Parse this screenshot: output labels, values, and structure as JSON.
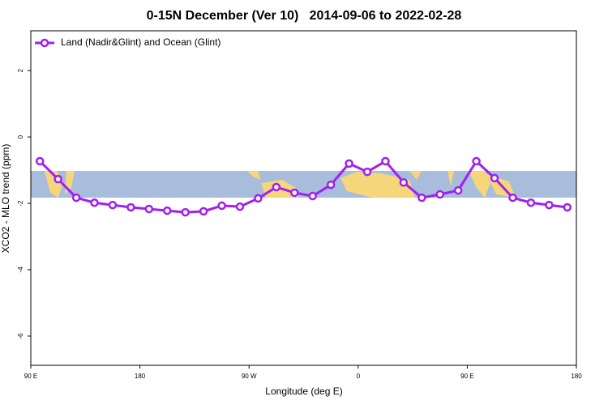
{
  "chart_data": {
    "type": "line",
    "title": "0-15N December (Ver 10)   2014-09-06 to 2022-02-28",
    "x_label": "Longitude (deg E)",
    "y_label": "XCO2 - MLO trend (ppm)",
    "xlim": [
      90,
      540
    ],
    "ylim": [
      -6.88,
      3.2
    ],
    "xticks": [
      {
        "value": 90,
        "label": "90 E"
      },
      180,
      {
        "value": 270,
        "label": "90 W"
      },
      {
        "value": 360,
        "label": "0"
      },
      {
        "value": 450,
        "label": "90 E"
      },
      {
        "value": 540,
        "label": "180"
      }
    ],
    "yticks": [
      2,
      0,
      -2,
      -4,
      -6
    ],
    "legend": "top-left",
    "x": [
      97.5,
      112.5,
      127.5,
      142.5,
      157.5,
      172.5,
      187.5,
      202.5,
      217.5,
      232.5,
      247.5,
      262.5,
      277.5,
      292.5,
      307.5,
      322.5,
      337.5,
      352.5,
      367.5,
      382.5,
      397.5,
      412.5,
      427.5,
      442.5,
      457.5,
      472.5,
      487.5,
      502.5,
      517.5,
      532.5
    ],
    "series": [
      {
        "name": "Land (Nadir&Glint) and Ocean (Glint)",
        "color": "#a020f0",
        "values": [
          -0.73,
          -1.27,
          -1.83,
          -1.98,
          -2.05,
          -2.12,
          -2.17,
          -2.22,
          -2.27,
          -2.24,
          -2.07,
          -2.1,
          -1.85,
          -1.51,
          -1.68,
          -1.78,
          -1.44,
          -0.8,
          -1.05,
          -0.73,
          -1.37,
          -1.83,
          -1.73,
          -1.61,
          -0.73,
          -1.24,
          -1.83,
          -1.98,
          -2.05,
          -2.12
        ]
      }
    ]
  }
}
